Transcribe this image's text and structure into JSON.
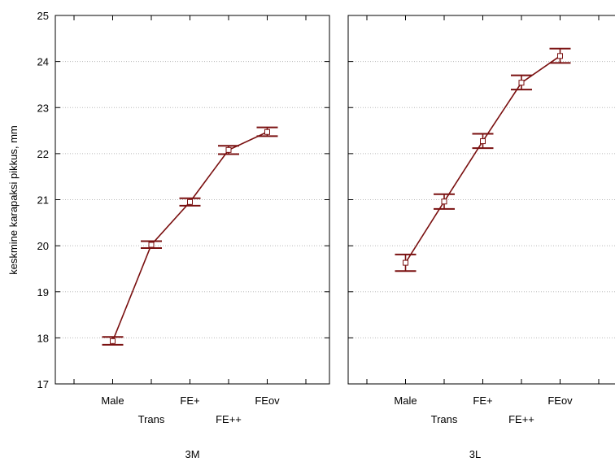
{
  "chart_data": {
    "type": "line",
    "ylabel": "keskmine karapaksi pikkus, mm",
    "ylim": [
      17,
      25
    ],
    "yticks": [
      17,
      18,
      19,
      20,
      21,
      22,
      23,
      24,
      25
    ],
    "grid": true,
    "categories": [
      "Male",
      "Trans",
      "FE+",
      "FE++",
      "FEov"
    ],
    "colors": {
      "series": "#7a1010",
      "grid": "#b8b8b8",
      "axis": "#000000"
    },
    "panels": [
      {
        "name": "3M",
        "categories": [
          "Male",
          "Trans",
          "FE+",
          "FE++",
          "FEov"
        ],
        "values": [
          17.93,
          20.02,
          20.95,
          22.08,
          22.47
        ],
        "err_low": [
          17.85,
          19.95,
          20.87,
          21.99,
          22.38
        ],
        "err_high": [
          18.02,
          20.1,
          21.03,
          22.17,
          22.57
        ]
      },
      {
        "name": "3L",
        "categories": [
          "Male",
          "Trans",
          "FE+",
          "FE++",
          "FEov"
        ],
        "values": [
          19.63,
          20.96,
          22.27,
          23.54,
          24.12
        ],
        "err_low": [
          19.45,
          20.8,
          22.12,
          23.39,
          23.97
        ],
        "err_high": [
          19.81,
          21.12,
          22.43,
          23.7,
          24.28
        ]
      }
    ]
  }
}
